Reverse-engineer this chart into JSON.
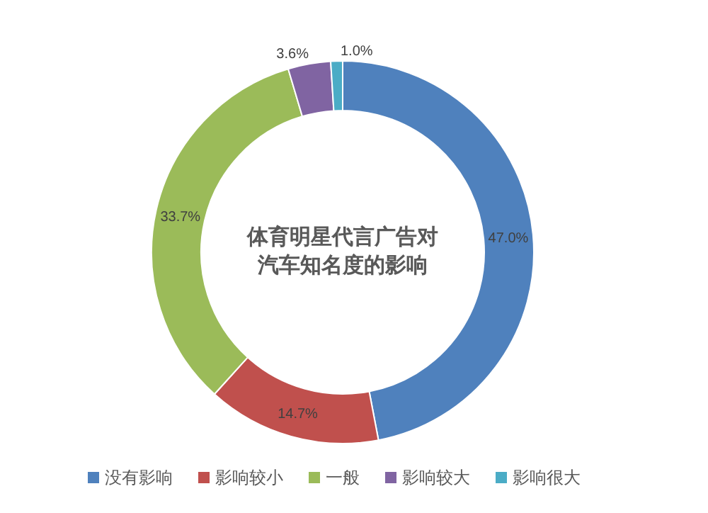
{
  "chart_data": {
    "type": "donut",
    "title": "体育明星代言广告对汽车知名度的影响",
    "categories": [
      "没有影响",
      "影响较小",
      "一般",
      "影响较大",
      "影响很大"
    ],
    "values": [
      47.0,
      14.7,
      33.7,
      3.6,
      1.0
    ],
    "value_labels": [
      "47.0%",
      "14.7%",
      "33.7%",
      "3.6%",
      "1.0%"
    ],
    "colors": [
      "#4f81bd",
      "#c0504d",
      "#9bbb59",
      "#8064a2",
      "#4bacc6"
    ],
    "legend": "bottom"
  }
}
